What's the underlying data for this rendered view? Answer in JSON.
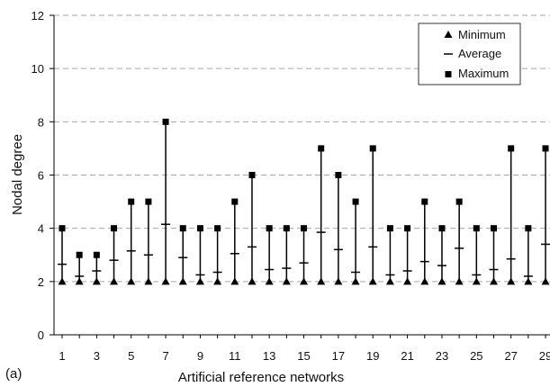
{
  "chart_data": {
    "type": "scatter",
    "panel_label": "(a)",
    "xlabel": "Artificial reference networks",
    "ylabel": "Nodal degree",
    "ylim": [
      0,
      12
    ],
    "yticks": [
      0,
      2,
      4,
      6,
      8,
      10,
      12
    ],
    "xtick_labels": [
      "1",
      "3",
      "5",
      "7",
      "9",
      "11",
      "13",
      "15",
      "17",
      "19",
      "21",
      "23",
      "25",
      "27",
      "29"
    ],
    "grid": "horizontal dashed",
    "legend_placement": "top-right",
    "legend": {
      "min_label": "Minimum",
      "avg_label": "Average",
      "max_label": "Maximum"
    },
    "x": [
      1,
      2,
      3,
      4,
      5,
      6,
      7,
      8,
      9,
      10,
      11,
      12,
      13,
      14,
      15,
      16,
      17,
      18,
      19,
      20,
      21,
      22,
      23,
      24,
      25,
      26,
      27,
      28,
      29
    ],
    "min": [
      2,
      2,
      2,
      2,
      2,
      2,
      2,
      2,
      2,
      2,
      2,
      2,
      2,
      2,
      2,
      2,
      2,
      2,
      2,
      2,
      2,
      2,
      2,
      2,
      2,
      2,
      2,
      2,
      2
    ],
    "avg": [
      2.65,
      2.2,
      2.4,
      2.8,
      3.15,
      3.0,
      4.15,
      2.9,
      2.25,
      2.35,
      3.05,
      3.3,
      2.45,
      2.5,
      2.7,
      3.85,
      3.2,
      2.35,
      3.3,
      2.25,
      2.4,
      2.75,
      2.6,
      3.25,
      2.25,
      2.45,
      2.85,
      2.2,
      3.4
    ],
    "max": [
      4,
      3,
      3,
      4,
      5,
      5,
      8,
      4,
      4,
      4,
      5,
      6,
      4,
      4,
      4,
      7,
      6,
      5,
      7,
      4,
      4,
      5,
      4,
      5,
      4,
      4,
      7,
      4,
      7
    ],
    "colors": {
      "marker": "#000000",
      "grid": "#a6a6a6",
      "axis": "#000000"
    }
  }
}
